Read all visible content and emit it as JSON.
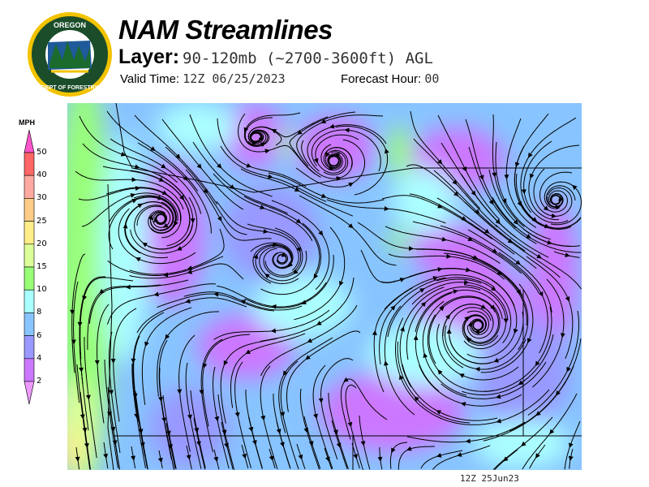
{
  "header": {
    "title": "NAM Streamlines",
    "layer_label": "Layer:",
    "layer_value": "90-120mb (~2700-3600ft) AGL",
    "valid_label": "Valid Time:",
    "valid_value": "12Z 06/25/2023",
    "forecast_label": "Forecast Hour:",
    "forecast_value": "00"
  },
  "logo": {
    "top_text": "OREGON",
    "bottom_text": "DEPARTMENT OF FORESTRY"
  },
  "legend": {
    "unit": "MPH",
    "ticks": [
      "50",
      "40",
      "30",
      "25",
      "20",
      "15",
      "10",
      "8",
      "6",
      "4",
      "2"
    ],
    "colors": {
      "above": "#ff55cc",
      "40-50": "#ff6666",
      "30-40": "#ffaaa0",
      "25-30": "#ffcc88",
      "20-25": "#ffee88",
      "15-20": "#ddff99",
      "10-15": "#99ff77",
      "8-10": "#aaffff",
      "6-8": "#88c4ff",
      "4-6": "#9999ff",
      "2-4": "#cc77ff",
      "below": "#ee99ff"
    }
  },
  "footer": {
    "timestamp": "12Z 25Jun23"
  }
}
